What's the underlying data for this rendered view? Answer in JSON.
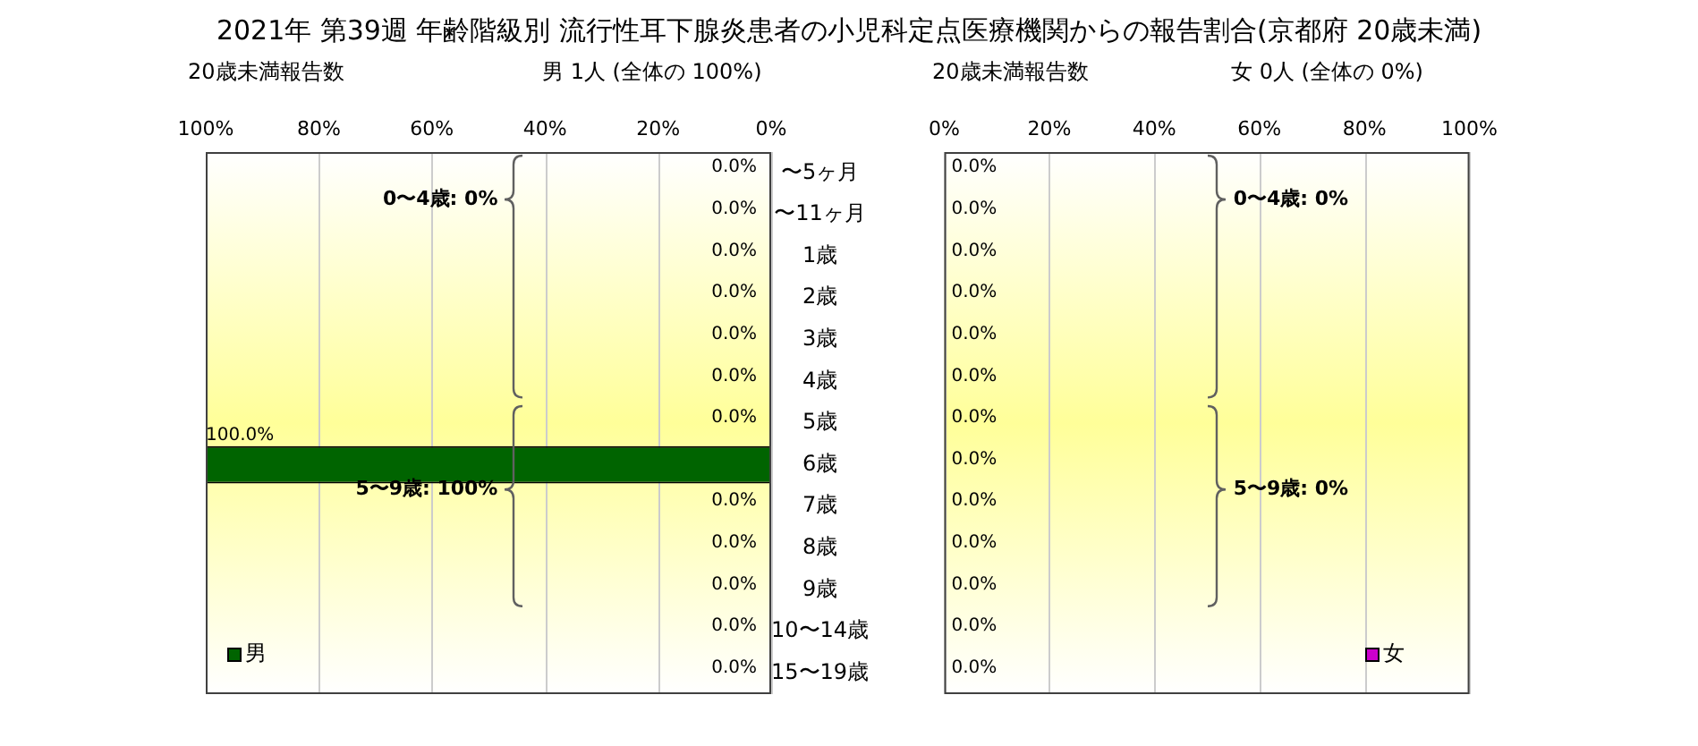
{
  "chart_data": [
    {
      "type": "bar",
      "orientation": "horizontal",
      "title": "2021年 第39週 年齢階級別 流行性耳下腺炎患者の小児科定点医療機関からの報告割合(京都府 20歳未満)",
      "subtitle": "男 1人 (全体の 100%)",
      "xlabel": "20歳未満報告数",
      "categories": [
        "〜5ヶ月",
        "〜11ヶ月",
        "1歳",
        "2歳",
        "3歳",
        "4歳",
        "5歳",
        "6歳",
        "7歳",
        "8歳",
        "9歳",
        "10〜14歳",
        "15〜19歳"
      ],
      "series": [
        {
          "name": "男",
          "color": "#006400",
          "values": [
            0,
            0,
            0,
            0,
            0,
            0,
            0,
            100,
            0,
            0,
            0,
            0,
            0
          ],
          "value_labels": [
            "0.0%",
            "0.0%",
            "0.0%",
            "0.0%",
            "0.0%",
            "0.0%",
            "0.0%",
            "100.0%",
            "0.0%",
            "0.0%",
            "0.0%",
            "0.0%",
            "0.0%"
          ]
        }
      ],
      "xlim": [
        100,
        0
      ],
      "xticks": [
        {
          "value": 100,
          "label": "100%"
        },
        {
          "value": 80,
          "label": "80%"
        },
        {
          "value": 60,
          "label": "60%"
        },
        {
          "value": 40,
          "label": "40%"
        },
        {
          "value": 20,
          "label": "20%"
        },
        {
          "value": 0,
          "label": "0%"
        }
      ],
      "grid": "x",
      "legend": "bottom left",
      "annotations": [
        "0〜4歳: 0%",
        "5〜9歳: 100%"
      ]
    },
    {
      "type": "bar",
      "orientation": "horizontal",
      "subtitle": "女 0人 (全体の 0%)",
      "xlabel": "20歳未満報告数",
      "categories": [
        null,
        null,
        null,
        null,
        null,
        null,
        null,
        null,
        null,
        null,
        null,
        null,
        null
      ],
      "series": [
        {
          "name": "女",
          "color": "#cc00cc",
          "values": [
            0,
            0,
            0,
            0,
            0,
            0,
            0,
            0,
            0,
            0,
            0,
            0,
            0
          ],
          "value_labels": [
            "0.0%",
            "0.0%",
            "0.0%",
            "0.0%",
            "0.0%",
            "0.0%",
            "0.0%",
            "0.0%",
            "0.0%",
            "0.0%",
            "0.0%",
            "0.0%",
            "0.0%"
          ]
        }
      ],
      "xlim": [
        0,
        100
      ],
      "xticks": [
        {
          "value": 0,
          "label": "0%"
        },
        {
          "value": 20,
          "label": "20%"
        },
        {
          "value": 40,
          "label": "40%"
        },
        {
          "value": 60,
          "label": "60%"
        },
        {
          "value": 80,
          "label": "80%"
        },
        {
          "value": 100,
          "label": "100%"
        }
      ],
      "grid": "x",
      "legend": "bottom right",
      "annotations": [
        "0〜4歳: 0%",
        "5〜9歳: 0%"
      ]
    }
  ]
}
